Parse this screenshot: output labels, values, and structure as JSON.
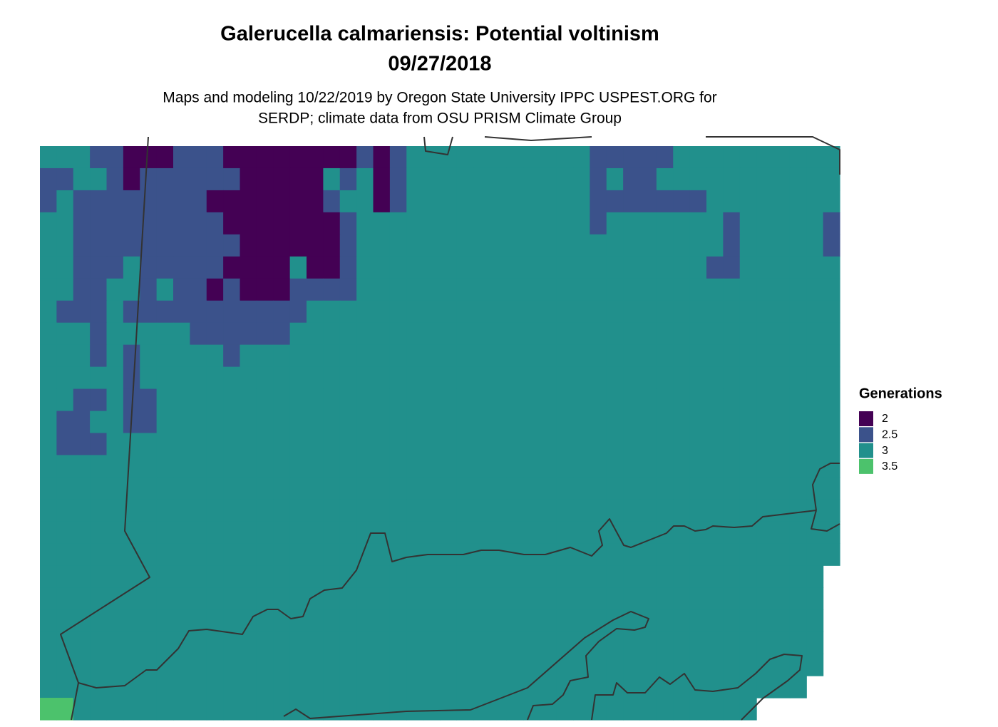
{
  "title": [
    "Galerucella calmariensis: Potential voltinism",
    "09/27/2018"
  ],
  "subtitle": [
    "Maps and modeling 10/22/2019 by Oregon State University IPPC USPEST.ORG for",
    "SERDP; climate data from OSU PRISM Climate Group"
  ],
  "legend": {
    "title": "Generations",
    "items": [
      {
        "value": 2,
        "color": "#440154"
      },
      {
        "value": 2.5,
        "color": "#3b528b"
      },
      {
        "value": 3,
        "color": "#21908c"
      },
      {
        "value": 3.5,
        "color": "#4cc26c"
      }
    ]
  },
  "raster": {
    "rows": [
      [
        3,
        3,
        3,
        2.5,
        2.5,
        2,
        2,
        2,
        2.5,
        2.5,
        2.5,
        2,
        2,
        2,
        2,
        2,
        2,
        2,
        2,
        2.5,
        2,
        2.5,
        3,
        3,
        3,
        3,
        3,
        3,
        3,
        3,
        3,
        3,
        3,
        2.5,
        2.5,
        2.5,
        2.5,
        2.5,
        3,
        3,
        3,
        3,
        3,
        3,
        3,
        3,
        3,
        3
      ],
      [
        2.5,
        2.5,
        3,
        3,
        2.5,
        2,
        2.5,
        2.5,
        2.5,
        2.5,
        2.5,
        2.5,
        2,
        2,
        2,
        2,
        2,
        3,
        2.5,
        3,
        2,
        2.5,
        3,
        3,
        3,
        3,
        3,
        3,
        3,
        3,
        3,
        3,
        3,
        2.5,
        3,
        2.5,
        2.5,
        3,
        3,
        3,
        3,
        3,
        3,
        3,
        3,
        3,
        3,
        3
      ],
      [
        2.5,
        3,
        2.5,
        2.5,
        2.5,
        2.5,
        2.5,
        2.5,
        2.5,
        2.5,
        2,
        2,
        2,
        2,
        2,
        2,
        2,
        2.5,
        3,
        3,
        2,
        2.5,
        3,
        3,
        3,
        3,
        3,
        3,
        3,
        3,
        3,
        3,
        3,
        2.5,
        2.5,
        2.5,
        2.5,
        2.5,
        2.5,
        2.5,
        3,
        3,
        3,
        3,
        3,
        3,
        3,
        3
      ],
      [
        3,
        3,
        2.5,
        2.5,
        2.5,
        2.5,
        2.5,
        2.5,
        2.5,
        2.5,
        2.5,
        2,
        2,
        2,
        2,
        2,
        2,
        2,
        2.5,
        3,
        3,
        3,
        3,
        3,
        3,
        3,
        3,
        3,
        3,
        3,
        3,
        3,
        3,
        2.5,
        3,
        3,
        3,
        3,
        3,
        3,
        3,
        2.5,
        3,
        3,
        3,
        3,
        3,
        2.5
      ],
      [
        3,
        3,
        2.5,
        2.5,
        2.5,
        2.5,
        2.5,
        2.5,
        2.5,
        2.5,
        2.5,
        2.5,
        2,
        2,
        2,
        2,
        2,
        2,
        2.5,
        3,
        3,
        3,
        3,
        3,
        3,
        3,
        3,
        3,
        3,
        3,
        3,
        3,
        3,
        3,
        3,
        3,
        3,
        3,
        3,
        3,
        3,
        2.5,
        3,
        3,
        3,
        3,
        3,
        2.5
      ],
      [
        3,
        3,
        2.5,
        2.5,
        2.5,
        3,
        2.5,
        2.5,
        2.5,
        2.5,
        2.5,
        2,
        2,
        2,
        2,
        3,
        2,
        2,
        2.5,
        3,
        3,
        3,
        3,
        3,
        3,
        3,
        3,
        3,
        3,
        3,
        3,
        3,
        3,
        3,
        3,
        3,
        3,
        3,
        3,
        3,
        2.5,
        2.5,
        3,
        3,
        3,
        3,
        3,
        3
      ],
      [
        3,
        3,
        2.5,
        2.5,
        3,
        3,
        2.5,
        3,
        2.5,
        2.5,
        2,
        2.5,
        2,
        2,
        2,
        2.5,
        2.5,
        2.5,
        2.5,
        3,
        3,
        3,
        3,
        3,
        3,
        3,
        3,
        3,
        3,
        3,
        3,
        3,
        3,
        3,
        3,
        3,
        3,
        3,
        3,
        3,
        3,
        3,
        3,
        3,
        3,
        3,
        3,
        3
      ],
      [
        3,
        2.5,
        2.5,
        2.5,
        3,
        2.5,
        2.5,
        2.5,
        2.5,
        2.5,
        2.5,
        2.5,
        2.5,
        2.5,
        2.5,
        2.5,
        3,
        3,
        3,
        3,
        3,
        3,
        3,
        3,
        3,
        3,
        3,
        3,
        3,
        3,
        3,
        3,
        3,
        3,
        3,
        3,
        3,
        3,
        3,
        3,
        3,
        3,
        3,
        3,
        3,
        3,
        3,
        3
      ],
      [
        3,
        3,
        3,
        2.5,
        3,
        3,
        3,
        3,
        3,
        2.5,
        2.5,
        2.5,
        2.5,
        2.5,
        2.5,
        3,
        3,
        3,
        3,
        3,
        3,
        3,
        3,
        3,
        3,
        3,
        3,
        3,
        3,
        3,
        3,
        3,
        3,
        3,
        3,
        3,
        3,
        3,
        3,
        3,
        3,
        3,
        3,
        3,
        3,
        3,
        3,
        3
      ],
      [
        3,
        3,
        3,
        2.5,
        3,
        2.5,
        3,
        3,
        3,
        3,
        3,
        2.5,
        3,
        3,
        3,
        3,
        3,
        3,
        3,
        3,
        3,
        3,
        3,
        3,
        3,
        3,
        3,
        3,
        3,
        3,
        3,
        3,
        3,
        3,
        3,
        3,
        3,
        3,
        3,
        3,
        3,
        3,
        3,
        3,
        3,
        3,
        3,
        3
      ],
      [
        3,
        3,
        3,
        3,
        3,
        2.5,
        3,
        3,
        3,
        3,
        3,
        3,
        3,
        3,
        3,
        3,
        3,
        3,
        3,
        3,
        3,
        3,
        3,
        3,
        3,
        3,
        3,
        3,
        3,
        3,
        3,
        3,
        3,
        3,
        3,
        3,
        3,
        3,
        3,
        3,
        3,
        3,
        3,
        3,
        3,
        3,
        3,
        3
      ],
      [
        3,
        3,
        2.5,
        2.5,
        3,
        2.5,
        2.5,
        3,
        3,
        3,
        3,
        3,
        3,
        3,
        3,
        3,
        3,
        3,
        3,
        3,
        3,
        3,
        3,
        3,
        3,
        3,
        3,
        3,
        3,
        3,
        3,
        3,
        3,
        3,
        3,
        3,
        3,
        3,
        3,
        3,
        3,
        3,
        3,
        3,
        3,
        3,
        3,
        3
      ],
      [
        3,
        2.5,
        2.5,
        3,
        3,
        2.5,
        2.5,
        3,
        3,
        3,
        3,
        3,
        3,
        3,
        3,
        3,
        3,
        3,
        3,
        3,
        3,
        3,
        3,
        3,
        3,
        3,
        3,
        3,
        3,
        3,
        3,
        3,
        3,
        3,
        3,
        3,
        3,
        3,
        3,
        3,
        3,
        3,
        3,
        3,
        3,
        3,
        3,
        3
      ],
      [
        3,
        2.5,
        2.5,
        2.5,
        3,
        3,
        3,
        3,
        3,
        3,
        3,
        3,
        3,
        3,
        3,
        3,
        3,
        3,
        3,
        3,
        3,
        3,
        3,
        3,
        3,
        3,
        3,
        3,
        3,
        3,
        3,
        3,
        3,
        3,
        3,
        3,
        3,
        3,
        3,
        3,
        3,
        3,
        3,
        3,
        3,
        3,
        3,
        3
      ],
      [
        3,
        3,
        3,
        3,
        3,
        3,
        3,
        3,
        3,
        3,
        3,
        3,
        3,
        3,
        3,
        3,
        3,
        3,
        3,
        3,
        3,
        3,
        3,
        3,
        3,
        3,
        3,
        3,
        3,
        3,
        3,
        3,
        3,
        3,
        3,
        3,
        3,
        3,
        3,
        3,
        3,
        3,
        3,
        3,
        3,
        3,
        3,
        3
      ],
      [
        3,
        3,
        3,
        3,
        3,
        3,
        3,
        3,
        3,
        3,
        3,
        3,
        3,
        3,
        3,
        3,
        3,
        3,
        3,
        3,
        3,
        3,
        3,
        3,
        3,
        3,
        3,
        3,
        3,
        3,
        3,
        3,
        3,
        3,
        3,
        3,
        3,
        3,
        3,
        3,
        3,
        3,
        3,
        3,
        3,
        3,
        3,
        3
      ],
      [
        3,
        3,
        3,
        3,
        3,
        3,
        3,
        3,
        3,
        3,
        3,
        3,
        3,
        3,
        3,
        3,
        3,
        3,
        3,
        3,
        3,
        3,
        3,
        3,
        3,
        3,
        3,
        3,
        3,
        3,
        3,
        3,
        3,
        3,
        3,
        3,
        3,
        3,
        3,
        3,
        3,
        3,
        3,
        3,
        3,
        3,
        3,
        3
      ],
      [
        3,
        3,
        3,
        3,
        3,
        3,
        3,
        3,
        3,
        3,
        3,
        3,
        3,
        3,
        3,
        3,
        3,
        3,
        3,
        3,
        3,
        3,
        3,
        3,
        3,
        3,
        3,
        3,
        3,
        3,
        3,
        3,
        3,
        3,
        3,
        3,
        3,
        3,
        3,
        3,
        3,
        3,
        3,
        3,
        3,
        3,
        3,
        3
      ],
      [
        3,
        3,
        3,
        3,
        3,
        3,
        3,
        3,
        3,
        3,
        3,
        3,
        3,
        3,
        3,
        3,
        3,
        3,
        3,
        3,
        3,
        3,
        3,
        3,
        3,
        3,
        3,
        3,
        3,
        3,
        3,
        3,
        3,
        3,
        3,
        3,
        3,
        3,
        3,
        3,
        3,
        3,
        3,
        3,
        3,
        3,
        3,
        3
      ],
      [
        3,
        3,
        3,
        3,
        3,
        3,
        3,
        3,
        3,
        3,
        3,
        3,
        3,
        3,
        3,
        3,
        3,
        3,
        3,
        3,
        3,
        3,
        3,
        3,
        3,
        3,
        3,
        3,
        3,
        3,
        3,
        3,
        3,
        3,
        3,
        3,
        3,
        3,
        3,
        3,
        3,
        3,
        3,
        3,
        3,
        3,
        3,
        null
      ],
      [
        3,
        3,
        3,
        3,
        3,
        3,
        3,
        3,
        3,
        3,
        3,
        3,
        3,
        3,
        3,
        3,
        3,
        3,
        3,
        3,
        3,
        3,
        3,
        3,
        3,
        3,
        3,
        3,
        3,
        3,
        3,
        3,
        3,
        3,
        3,
        3,
        3,
        3,
        3,
        3,
        3,
        3,
        3,
        3,
        3,
        3,
        3,
        null
      ],
      [
        3,
        3,
        3,
        3,
        3,
        3,
        3,
        3,
        3,
        3,
        3,
        3,
        3,
        3,
        3,
        3,
        3,
        3,
        3,
        3,
        3,
        3,
        3,
        3,
        3,
        3,
        3,
        3,
        3,
        3,
        3,
        3,
        3,
        3,
        3,
        3,
        3,
        3,
        3,
        3,
        3,
        3,
        3,
        3,
        3,
        3,
        3,
        null
      ],
      [
        3,
        3,
        3,
        3,
        3,
        3,
        3,
        3,
        3,
        3,
        3,
        3,
        3,
        3,
        3,
        3,
        3,
        3,
        3,
        3,
        3,
        3,
        3,
        3,
        3,
        3,
        3,
        3,
        3,
        3,
        3,
        3,
        3,
        3,
        3,
        3,
        3,
        3,
        3,
        3,
        3,
        3,
        3,
        3,
        3,
        3,
        3,
        null
      ],
      [
        3,
        3,
        3,
        3,
        3,
        3,
        3,
        3,
        3,
        3,
        3,
        3,
        3,
        3,
        3,
        3,
        3,
        3,
        3,
        3,
        3,
        3,
        3,
        3,
        3,
        3,
        3,
        3,
        3,
        3,
        3,
        3,
        3,
        3,
        3,
        3,
        3,
        3,
        3,
        3,
        3,
        3,
        3,
        3,
        3,
        3,
        3,
        null
      ],
      [
        3,
        3,
        3,
        3,
        3,
        3,
        3,
        3,
        3,
        3,
        3,
        3,
        3,
        3,
        3,
        3,
        3,
        3,
        3,
        3,
        3,
        3,
        3,
        3,
        3,
        3,
        3,
        3,
        3,
        3,
        3,
        3,
        3,
        3,
        3,
        3,
        3,
        3,
        3,
        3,
        3,
        3,
        3,
        3,
        3,
        3,
        null,
        null
      ],
      [
        3.5,
        3.5,
        3,
        3,
        3,
        3,
        3,
        3,
        3,
        3,
        3,
        3,
        3,
        3,
        3,
        3,
        3,
        3,
        3,
        3,
        3,
        3,
        3,
        3,
        3,
        3,
        3,
        3,
        3,
        3,
        3,
        3,
        3,
        3,
        3,
        3,
        3,
        3,
        3,
        3,
        3,
        3,
        3,
        null,
        null,
        null,
        null,
        null
      ]
    ]
  }
}
